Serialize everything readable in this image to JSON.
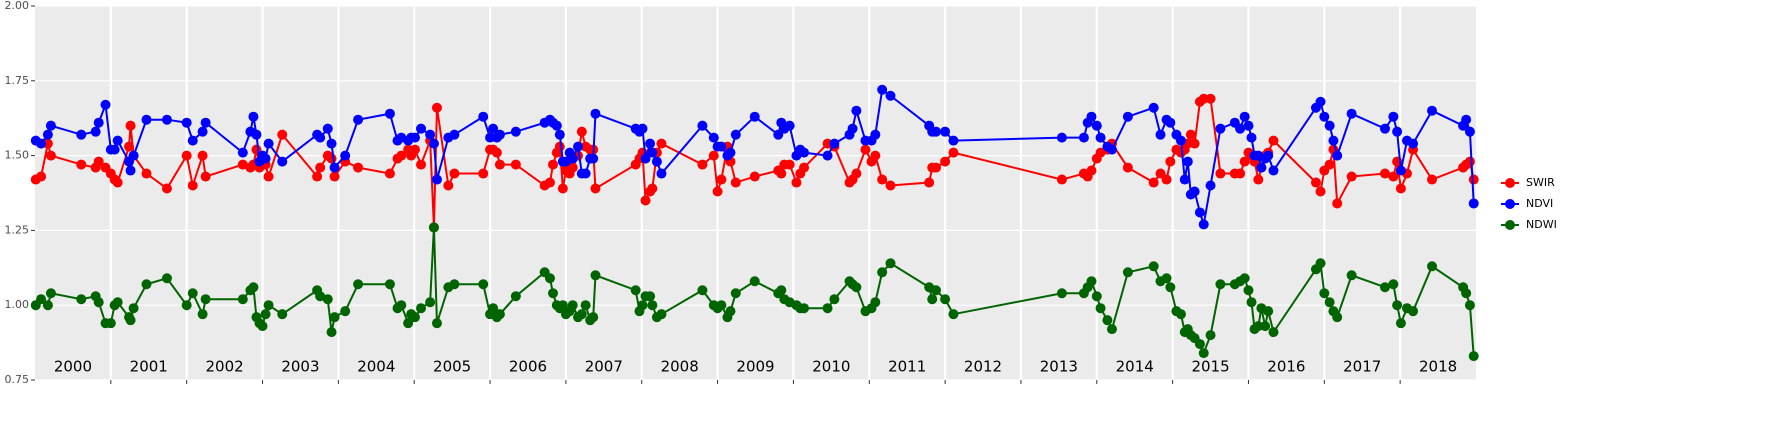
{
  "chart_data": {
    "type": "line",
    "x": [
      2000.01,
      2000.08,
      2000.17,
      2000.21,
      2000.61,
      2000.8,
      2000.84,
      2000.93,
      2001.0,
      2001.05,
      2001.09,
      2001.24,
      2001.26,
      2001.3,
      2001.47,
      2001.74,
      2002.0,
      2002.08,
      2002.21,
      2002.25,
      2002.74,
      2002.84,
      2002.88,
      2002.92,
      2002.96,
      2003.0,
      2003.04,
      2003.08,
      2003.26,
      2003.72,
      2003.76,
      2003.86,
      2003.91,
      2003.95,
      2004.09,
      2004.26,
      2004.68,
      2004.78,
      2004.83,
      2004.92,
      2004.96,
      2005.01,
      2005.09,
      2005.21,
      2005.26,
      2005.3,
      2005.45,
      2005.53,
      2005.91,
      2006.0,
      2006.04,
      2006.09,
      2006.13,
      2006.34,
      2006.72,
      2006.79,
      2006.83,
      2006.88,
      2006.92,
      2006.96,
      2007.0,
      2007.05,
      2007.09,
      2007.16,
      2007.21,
      2007.26,
      2007.32,
      2007.36,
      2007.39,
      2007.92,
      2007.97,
      2008.01,
      2008.05,
      2008.11,
      2008.14,
      2008.2,
      2008.26,
      2008.8,
      2008.95,
      2009.0,
      2009.05,
      2009.13,
      2009.17,
      2009.24,
      2009.49,
      2009.8,
      2009.84,
      2009.88,
      2009.95,
      2010.04,
      2010.09,
      2010.14,
      2010.45,
      2010.54,
      2010.74,
      2010.78,
      2010.83,
      2010.95,
      2011.03,
      2011.08,
      2011.17,
      2011.28,
      2011.79,
      2011.83,
      2011.88,
      2012.0,
      2012.11,
      2013.54,
      2013.83,
      2013.88,
      2013.93,
      2014.0,
      2014.05,
      2014.14,
      2014.2,
      2014.41,
      2014.75,
      2014.84,
      2014.92,
      2014.97,
      2015.05,
      2015.11,
      2015.16,
      2015.2,
      2015.24,
      2015.29,
      2015.36,
      2015.41,
      2015.5,
      2015.63,
      2015.82,
      2015.89,
      2015.95,
      2016.0,
      2016.04,
      2016.08,
      2016.13,
      2016.17,
      2016.22,
      2016.26,
      2016.33,
      2016.89,
      2016.95,
      2017.0,
      2017.07,
      2017.12,
      2017.17,
      2017.36,
      2017.8,
      2017.91,
      2017.96,
      2018.01,
      2018.09,
      2018.17,
      2018.42,
      2018.83,
      2018.87,
      2018.92,
      2018.97
    ],
    "series": [
      {
        "name": "SWIR",
        "color": "#ff0000",
        "values": [
          1.42,
          1.43,
          1.54,
          1.5,
          1.47,
          1.46,
          1.48,
          1.46,
          1.44,
          1.42,
          1.41,
          1.53,
          1.6,
          1.5,
          1.44,
          1.39,
          1.5,
          1.4,
          1.5,
          1.43,
          1.47,
          1.46,
          1.47,
          1.52,
          1.46,
          1.5,
          1.47,
          1.43,
          1.57,
          1.43,
          1.46,
          1.5,
          1.49,
          1.43,
          1.48,
          1.46,
          1.44,
          1.49,
          1.5,
          1.52,
          1.5,
          1.52,
          1.47,
          1.55,
          1.26,
          1.66,
          1.4,
          1.44,
          1.44,
          1.52,
          1.52,
          1.51,
          1.47,
          1.47,
          1.4,
          1.41,
          1.47,
          1.51,
          1.53,
          1.39,
          1.45,
          1.44,
          1.46,
          1.5,
          1.58,
          1.53,
          1.52,
          1.52,
          1.39,
          1.47,
          1.49,
          1.51,
          1.35,
          1.38,
          1.39,
          1.51,
          1.54,
          1.47,
          1.5,
          1.38,
          1.42,
          1.53,
          1.48,
          1.41,
          1.43,
          1.45,
          1.44,
          1.47,
          1.47,
          1.41,
          1.44,
          1.46,
          1.54,
          1.53,
          1.41,
          1.42,
          1.44,
          1.52,
          1.48,
          1.5,
          1.42,
          1.4,
          1.41,
          1.46,
          1.46,
          1.48,
          1.51,
          1.42,
          1.44,
          1.43,
          1.45,
          1.49,
          1.51,
          1.52,
          1.54,
          1.46,
          1.41,
          1.44,
          1.42,
          1.48,
          1.52,
          1.51,
          1.52,
          1.54,
          1.57,
          1.54,
          1.68,
          1.69,
          1.69,
          1.44,
          1.44,
          1.44,
          1.48,
          1.51,
          1.5,
          1.48,
          1.42,
          1.46,
          1.5,
          1.51,
          1.55,
          1.41,
          1.38,
          1.45,
          1.47,
          1.52,
          1.34,
          1.43,
          1.44,
          1.43,
          1.48,
          1.39,
          1.44,
          1.52,
          1.42,
          1.46,
          1.47,
          1.48,
          1.42
        ]
      },
      {
        "name": "NDVI",
        "color": "#0000ff",
        "values": [
          1.55,
          1.54,
          1.57,
          1.6,
          1.57,
          1.58,
          1.61,
          1.67,
          1.52,
          1.52,
          1.55,
          1.48,
          1.45,
          1.5,
          1.62,
          1.62,
          1.61,
          1.55,
          1.58,
          1.61,
          1.51,
          1.58,
          1.63,
          1.57,
          1.48,
          1.5,
          1.49,
          1.54,
          1.48,
          1.57,
          1.56,
          1.59,
          1.54,
          1.46,
          1.5,
          1.62,
          1.64,
          1.55,
          1.56,
          1.55,
          1.56,
          1.56,
          1.59,
          1.57,
          1.54,
          1.42,
          1.56,
          1.57,
          1.63,
          1.56,
          1.59,
          1.56,
          1.57,
          1.58,
          1.61,
          1.62,
          1.61,
          1.6,
          1.57,
          1.48,
          1.48,
          1.51,
          1.49,
          1.53,
          1.44,
          1.44,
          1.49,
          1.49,
          1.64,
          1.59,
          1.58,
          1.59,
          1.49,
          1.54,
          1.51,
          1.48,
          1.44,
          1.6,
          1.56,
          1.53,
          1.53,
          1.5,
          1.51,
          1.57,
          1.63,
          1.57,
          1.61,
          1.59,
          1.6,
          1.5,
          1.52,
          1.51,
          1.5,
          1.54,
          1.57,
          1.59,
          1.65,
          1.55,
          1.55,
          1.57,
          1.72,
          1.7,
          1.6,
          1.58,
          1.58,
          1.58,
          1.55,
          1.56,
          1.56,
          1.61,
          1.63,
          1.6,
          1.56,
          1.53,
          1.52,
          1.63,
          1.66,
          1.57,
          1.62,
          1.61,
          1.57,
          1.55,
          1.42,
          1.48,
          1.37,
          1.38,
          1.31,
          1.27,
          1.4,
          1.59,
          1.61,
          1.59,
          1.63,
          1.6,
          1.56,
          1.5,
          1.5,
          1.46,
          1.49,
          1.5,
          1.45,
          1.66,
          1.68,
          1.63,
          1.6,
          1.55,
          1.5,
          1.64,
          1.59,
          1.63,
          1.58,
          1.45,
          1.55,
          1.54,
          1.65,
          1.6,
          1.62,
          1.58,
          1.34
        ]
      },
      {
        "name": "NDWI",
        "color": "#006400",
        "values": [
          1.0,
          1.02,
          1.0,
          1.04,
          1.02,
          1.03,
          1.01,
          0.94,
          0.94,
          1.0,
          1.01,
          0.96,
          0.95,
          0.99,
          1.07,
          1.09,
          1.0,
          1.04,
          0.97,
          1.02,
          1.02,
          1.05,
          1.06,
          0.96,
          0.94,
          0.93,
          0.97,
          1.0,
          0.97,
          1.05,
          1.03,
          1.02,
          0.91,
          0.96,
          0.98,
          1.07,
          1.07,
          0.99,
          1.0,
          0.94,
          0.97,
          0.96,
          0.99,
          1.01,
          1.26,
          0.94,
          1.06,
          1.07,
          1.07,
          0.97,
          0.99,
          0.96,
          0.97,
          1.03,
          1.11,
          1.09,
          1.04,
          1.0,
          0.99,
          1.0,
          0.97,
          0.98,
          1.0,
          0.96,
          0.97,
          1.0,
          0.95,
          0.96,
          1.1,
          1.05,
          0.98,
          1.0,
          1.03,
          1.03,
          1.0,
          0.96,
          0.97,
          1.05,
          1.0,
          0.99,
          1.0,
          0.96,
          0.98,
          1.04,
          1.08,
          1.04,
          1.05,
          1.02,
          1.01,
          1.0,
          0.99,
          0.99,
          0.99,
          1.02,
          1.08,
          1.07,
          1.06,
          0.98,
          0.99,
          1.01,
          1.11,
          1.14,
          1.06,
          1.02,
          1.05,
          1.02,
          0.97,
          1.04,
          1.04,
          1.06,
          1.08,
          1.03,
          0.99,
          0.95,
          0.92,
          1.11,
          1.13,
          1.08,
          1.09,
          1.06,
          0.98,
          0.97,
          0.91,
          0.92,
          0.9,
          0.89,
          0.87,
          0.84,
          0.9,
          1.07,
          1.07,
          1.08,
          1.09,
          1.05,
          1.01,
          0.92,
          0.93,
          0.99,
          0.93,
          0.98,
          0.91,
          1.12,
          1.14,
          1.04,
          1.01,
          0.98,
          0.96,
          1.1,
          1.06,
          1.07,
          1.0,
          0.94,
          0.99,
          0.98,
          1.13,
          1.06,
          1.04,
          1.0,
          0.83
        ]
      }
    ],
    "xlim": [
      2000,
      2019
    ],
    "xticks": [
      2001,
      2002,
      2003,
      2004,
      2005,
      2006,
      2007,
      2008,
      2009,
      2010,
      2011,
      2012,
      2013,
      2014,
      2015,
      2016,
      2017,
      2018
    ],
    "year_labels": [
      "2000",
      "2001",
      "2002",
      "2003",
      "2004",
      "2005",
      "2006",
      "2007",
      "2008",
      "2009",
      "2010",
      "2011",
      "2012",
      "2013",
      "2014",
      "2015",
      "2016",
      "2017",
      "2018"
    ],
    "ylim": [
      0.75,
      2
    ],
    "yticks": [
      {
        "value": 0.75,
        "label": "0.75"
      },
      {
        "value": 1,
        "label": "1.00"
      },
      {
        "value": 1.25,
        "label": "1.25"
      },
      {
        "value": 1.5,
        "label": "1.50"
      },
      {
        "value": 1.75,
        "label": "1.75"
      },
      {
        "value": 2,
        "label": "2.00"
      }
    ],
    "grid": true,
    "legend": "right"
  }
}
